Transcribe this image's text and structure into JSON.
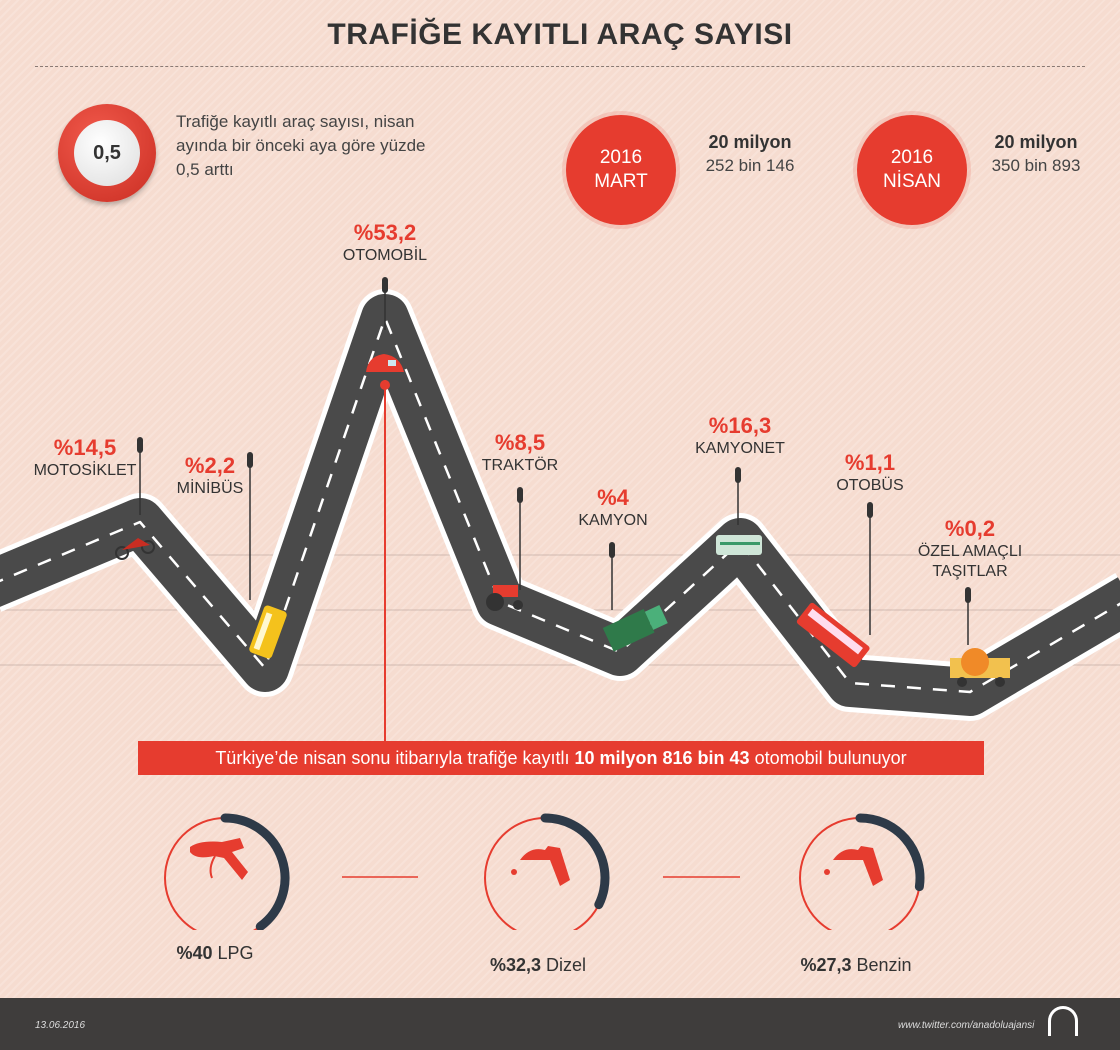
{
  "title": "TRAFİĞE KAYITLI ARAÇ SAYISI",
  "badge": "0,5",
  "intro": "Trafiğe kayıtlı araç sayısı, nisan ayında bir önceki aya göre yüzde 0,5 arttı",
  "periods": [
    {
      "year": "2016",
      "month": "MART",
      "count_main": "20 milyon",
      "count_rest": "252 bin 146"
    },
    {
      "year": "2016",
      "month": "NİSAN",
      "count_main": "20 milyon",
      "count_rest": "350 bin 893"
    }
  ],
  "vehicles": [
    {
      "pct": "%14,5",
      "name": "MOTOSİKLET"
    },
    {
      "pct": "%2,2",
      "name": "MİNİBÜS"
    },
    {
      "pct": "%53,2",
      "name": "OTOMOBİL"
    },
    {
      "pct": "%8,5",
      "name": "TRAKTÖR"
    },
    {
      "pct": "%4",
      "name": "KAMYON"
    },
    {
      "pct": "%16,3",
      "name": "KAMYONET"
    },
    {
      "pct": "%1,1",
      "name": "OTOBÜS"
    },
    {
      "pct": "%0,2",
      "name": "ÖZEL AMAÇLI TAŞITLAR"
    }
  ],
  "banner": {
    "pre": "Türkiye’de nisan sonu itibarıyla trafiğe kayıtlı",
    "bold": "10 milyon 816 bin 43",
    "post": "otomobil bulunuyor"
  },
  "fuels": [
    {
      "pct": "%40",
      "name": "LPG",
      "value": 40
    },
    {
      "pct": "%32,3",
      "name": "Dizel",
      "value": 32.3
    },
    {
      "pct": "%27,3",
      "name": "Benzin",
      "value": 27.3
    }
  ],
  "footer": {
    "date": "13.06.2016",
    "url": "www.twitter.com/anadoluajansi",
    "logo": "AA"
  },
  "colors": {
    "red": "#e63c2f",
    "road": "#4a4a4a",
    "dark": "#2e3a48"
  }
}
